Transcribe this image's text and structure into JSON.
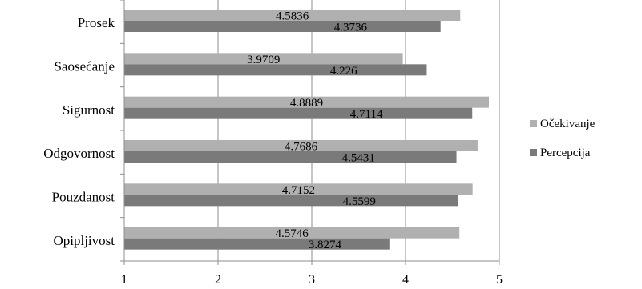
{
  "chart_data": {
    "type": "bar",
    "orientation": "horizontal",
    "categories": [
      "Prosek",
      "Saosećanje",
      "Sigurnost",
      "Odgovornost",
      "Pouzdanost",
      "Opipljivost"
    ],
    "series": [
      {
        "name": "Očekivanje",
        "color": "#b0b0b0",
        "values": [
          4.5836,
          3.9709,
          4.8889,
          4.7686,
          4.7152,
          4.5746
        ]
      },
      {
        "name": "Percepcija",
        "color": "#7a7a7a",
        "values": [
          4.3736,
          4.226,
          4.7114,
          4.5431,
          4.5599,
          3.8274
        ]
      }
    ],
    "data_labels": [
      [
        "4.5836",
        "3.9709",
        "4.8889",
        "4.7686",
        "4.7152",
        "4.5746"
      ],
      [
        "4.3736",
        "4.226",
        "4.7114",
        "4.5431",
        "4.5599",
        "3.8274"
      ]
    ],
    "xlim": [
      1,
      5
    ],
    "xticks": [
      1,
      2,
      3,
      4,
      5
    ],
    "xtick_labels": [
      "1",
      "2",
      "3",
      "4",
      "5"
    ],
    "grid": true,
    "legend_position": "right"
  }
}
